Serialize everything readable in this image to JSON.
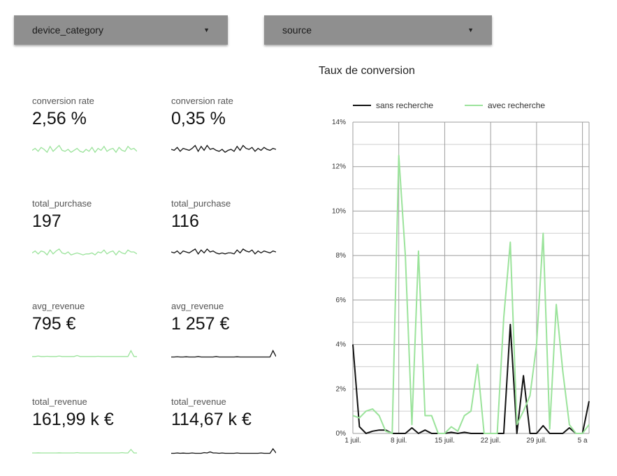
{
  "filters": {
    "device": {
      "label": "device_category"
    },
    "source": {
      "label": "source"
    }
  },
  "scorecards": {
    "conversion_rate_a": {
      "label": "conversion rate",
      "value": "2,56 %"
    },
    "conversion_rate_b": {
      "label": "conversion rate",
      "value": "0,35 %"
    },
    "total_purchase_a": {
      "label": "total_purchase",
      "value": "197"
    },
    "total_purchase_b": {
      "label": "total_purchase",
      "value": "116"
    },
    "avg_revenue_a": {
      "label": "avg_revenue",
      "value": "795 €"
    },
    "avg_revenue_b": {
      "label": "avg_revenue",
      "value": "1 257 €"
    },
    "total_revenue_a": {
      "label": "total_revenue",
      "value": "161,99 k €"
    },
    "total_revenue_b": {
      "label": "total_revenue",
      "value": "114,67 k €"
    }
  },
  "colors": {
    "green": "#9be39b",
    "black": "#111111",
    "dropdown": "#8f8f8f",
    "grid": "#9e9e9e"
  },
  "chart": {
    "title": "Taux de conversion"
  },
  "chart_data": {
    "type": "line",
    "title": "Taux de conversion",
    "ylim": [
      0,
      14
    ],
    "y_ticks": [
      0,
      2,
      4,
      6,
      8,
      10,
      12,
      14
    ],
    "y_tick_labels": [
      "0%",
      "2%",
      "4%",
      "6%",
      "8%",
      "10%",
      "12%",
      "14%"
    ],
    "x_tick_labels": [
      "1 juil.",
      "8 juil.",
      "15 juil.",
      "22 juil.",
      "29 juil.",
      "5 a"
    ],
    "x_tick_days": [
      1,
      8,
      15,
      22,
      29,
      36
    ],
    "x_day_range": [
      1,
      37
    ],
    "x": [
      1,
      2,
      3,
      4,
      5,
      6,
      7,
      8,
      9,
      10,
      11,
      12,
      13,
      14,
      15,
      16,
      17,
      18,
      19,
      20,
      21,
      22,
      23,
      24,
      25,
      26,
      27,
      28,
      29,
      30,
      31,
      32,
      33,
      34,
      35,
      36,
      37
    ],
    "grid": true,
    "legend_position": "top",
    "series": [
      {
        "name": "sans recherche",
        "color": "#111111",
        "values": [
          4.0,
          0.3,
          0.0,
          0.1,
          0.15,
          0.15,
          0.0,
          0.0,
          0.0,
          0.25,
          0.0,
          0.15,
          0.0,
          0.0,
          0.0,
          0.05,
          0.0,
          0.05,
          0.0,
          0.0,
          0.0,
          0.0,
          0.0,
          0.0,
          4.9,
          0.0,
          2.6,
          0.0,
          0.0,
          0.35,
          0.0,
          0.0,
          0.0,
          0.25,
          0.0,
          0.0,
          1.45
        ]
      },
      {
        "name": "avec recherche",
        "color": "#9be39b",
        "values": [
          0.8,
          0.7,
          1.0,
          1.1,
          0.8,
          0.1,
          0.0,
          12.5,
          8.0,
          0.4,
          8.2,
          0.8,
          0.8,
          0.0,
          0.0,
          0.3,
          0.1,
          0.8,
          1.0,
          3.1,
          0.0,
          0.0,
          0.0,
          5.2,
          8.6,
          0.4,
          1.0,
          1.7,
          4.0,
          9.0,
          0.2,
          5.8,
          2.8,
          0.4,
          0.0,
          0.0,
          0.4
        ]
      }
    ]
  },
  "sparklines": {
    "conv_a": [
      0.4,
      0.6,
      0.3,
      0.7,
      0.5,
      0.2,
      0.8,
      0.3,
      0.6,
      0.9,
      0.4,
      0.3,
      0.5,
      0.2,
      0.4,
      0.6,
      0.3,
      0.2,
      0.5,
      0.3,
      0.7,
      0.2,
      0.6,
      0.4,
      0.8,
      0.3,
      0.5,
      0.6,
      0.2,
      0.7,
      0.4,
      0.3,
      0.8,
      0.5,
      0.6,
      0.3
    ],
    "conv_b": [
      0.5,
      0.4,
      0.7,
      0.3,
      0.6,
      0.5,
      0.4,
      0.6,
      0.9,
      0.3,
      0.8,
      0.4,
      0.9,
      0.5,
      0.6,
      0.4,
      0.3,
      0.5,
      0.2,
      0.4,
      0.5,
      0.3,
      0.8,
      0.4,
      0.9,
      0.6,
      0.5,
      0.7,
      0.3,
      0.6,
      0.4,
      0.7,
      0.5,
      0.4,
      0.6,
      0.5
    ],
    "purch_a": [
      0.4,
      0.6,
      0.3,
      0.6,
      0.5,
      0.2,
      0.7,
      0.3,
      0.6,
      0.8,
      0.4,
      0.3,
      0.5,
      0.2,
      0.3,
      0.4,
      0.3,
      0.2,
      0.3,
      0.3,
      0.4,
      0.2,
      0.5,
      0.4,
      0.7,
      0.3,
      0.5,
      0.6,
      0.2,
      0.6,
      0.4,
      0.3,
      0.7,
      0.5,
      0.5,
      0.3
    ],
    "purch_b": [
      0.5,
      0.4,
      0.6,
      0.3,
      0.6,
      0.5,
      0.4,
      0.6,
      0.8,
      0.3,
      0.7,
      0.4,
      0.8,
      0.5,
      0.6,
      0.4,
      0.3,
      0.4,
      0.3,
      0.4,
      0.4,
      0.3,
      0.7,
      0.4,
      0.8,
      0.6,
      0.5,
      0.7,
      0.3,
      0.6,
      0.4,
      0.6,
      0.5,
      0.4,
      0.6,
      0.5
    ],
    "avg_a": [
      0.3,
      0.3,
      0.35,
      0.3,
      0.3,
      0.32,
      0.3,
      0.3,
      0.3,
      0.35,
      0.3,
      0.3,
      0.3,
      0.3,
      0.3,
      0.4,
      0.3,
      0.3,
      0.3,
      0.3,
      0.3,
      0.3,
      0.32,
      0.3,
      0.3,
      0.3,
      0.3,
      0.3,
      0.3,
      0.3,
      0.3,
      0.3,
      0.3,
      0.9,
      0.3,
      0.3
    ],
    "avg_b": [
      0.25,
      0.25,
      0.28,
      0.25,
      0.25,
      0.27,
      0.25,
      0.25,
      0.25,
      0.3,
      0.25,
      0.25,
      0.25,
      0.25,
      0.25,
      0.3,
      0.25,
      0.25,
      0.25,
      0.25,
      0.25,
      0.25,
      0.27,
      0.25,
      0.25,
      0.25,
      0.25,
      0.25,
      0.25,
      0.25,
      0.25,
      0.25,
      0.25,
      0.25,
      0.9,
      0.3
    ],
    "rev_a": [
      0.3,
      0.3,
      0.32,
      0.3,
      0.3,
      0.3,
      0.3,
      0.3,
      0.3,
      0.32,
      0.3,
      0.3,
      0.3,
      0.3,
      0.3,
      0.35,
      0.3,
      0.3,
      0.3,
      0.3,
      0.3,
      0.3,
      0.3,
      0.3,
      0.3,
      0.3,
      0.3,
      0.3,
      0.3,
      0.3,
      0.35,
      0.3,
      0.3,
      0.8,
      0.3,
      0.3
    ],
    "rev_b": [
      0.25,
      0.25,
      0.3,
      0.25,
      0.28,
      0.25,
      0.25,
      0.3,
      0.25,
      0.25,
      0.25,
      0.35,
      0.3,
      0.45,
      0.3,
      0.3,
      0.25,
      0.3,
      0.25,
      0.25,
      0.25,
      0.25,
      0.3,
      0.25,
      0.25,
      0.25,
      0.25,
      0.25,
      0.25,
      0.25,
      0.3,
      0.25,
      0.25,
      0.25,
      0.9,
      0.3
    ]
  }
}
